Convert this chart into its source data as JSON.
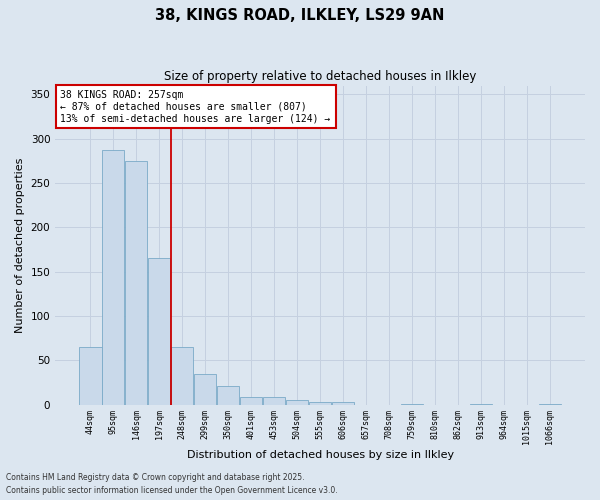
{
  "title_line1": "38, KINGS ROAD, ILKLEY, LS29 9AN",
  "title_line2": "Size of property relative to detached houses in Ilkley",
  "xlabel": "Distribution of detached houses by size in Ilkley",
  "ylabel": "Number of detached properties",
  "bar_labels": [
    "44sqm",
    "95sqm",
    "146sqm",
    "197sqm",
    "248sqm",
    "299sqm",
    "350sqm",
    "401sqm",
    "453sqm",
    "504sqm",
    "555sqm",
    "606sqm",
    "657sqm",
    "708sqm",
    "759sqm",
    "810sqm",
    "862sqm",
    "913sqm",
    "964sqm",
    "1015sqm",
    "1066sqm"
  ],
  "bar_values": [
    65,
    287,
    275,
    165,
    65,
    35,
    21,
    8,
    9,
    5,
    3,
    3,
    0,
    0,
    1,
    0,
    0,
    1,
    0,
    0,
    1
  ],
  "bar_color": "#c9d9ea",
  "bar_edge_color": "#7aaac8",
  "vline_color": "#cc0000",
  "vline_x_index": 4,
  "annotation_text": "38 KINGS ROAD: 257sqm\n← 87% of detached houses are smaller (807)\n13% of semi-detached houses are larger (124) →",
  "annotation_box_facecolor": "#ffffff",
  "annotation_box_edgecolor": "#cc0000",
  "ylim": [
    0,
    360
  ],
  "yticks": [
    0,
    50,
    100,
    150,
    200,
    250,
    300,
    350
  ],
  "grid_color": "#c5d0e0",
  "bg_color": "#dce6f0",
  "fig_facecolor": "#dce6f0",
  "footer_line1": "Contains HM Land Registry data © Crown copyright and database right 2025.",
  "footer_line2": "Contains public sector information licensed under the Open Government Licence v3.0."
}
